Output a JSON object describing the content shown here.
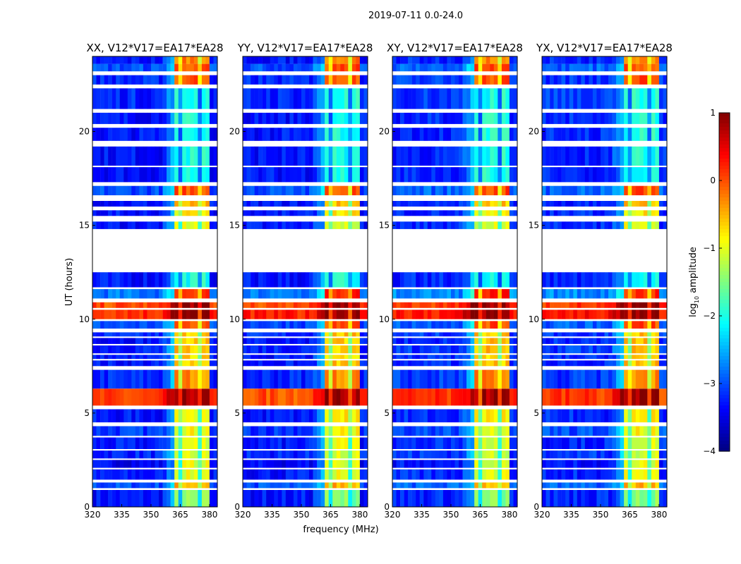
{
  "chart_data": {
    "type": "heatmap",
    "suptitle": "2019-07-11 0.0-24.0",
    "xlabel": "frequency (MHz)",
    "ylabel": "UT (hours)",
    "xlim": [
      320,
      384
    ],
    "ylim": [
      0,
      24
    ],
    "xticks": [
      "320",
      "335",
      "350",
      "365",
      "380"
    ],
    "yticks": [
      "0",
      "5",
      "10",
      "15",
      "20"
    ],
    "colorbar": {
      "label": "log10 amplitude",
      "label_main": "log",
      "label_sub": "10",
      "label_rest": " amplitude",
      "range": [
        -4,
        1
      ],
      "ticks": [
        "1",
        "0",
        "−1",
        "−2",
        "−3",
        "−4"
      ],
      "colormap": "jet"
    },
    "panels": [
      {
        "title": "XX, V12*V17=EA17*EA28"
      },
      {
        "title": "YY, V12*V17=EA17*EA28"
      },
      {
        "title": "XY, V12*V17=EA17*EA28"
      },
      {
        "title": "YX, V12*V17=EA17*EA28"
      }
    ],
    "band_mhz": [
      360.5,
      380
    ],
    "segments_note": "[start_hour, end_hour, background_log_amp, band_log_amp]; null = flagged/no data",
    "segments": [
      [
        0,
        0.9,
        -3.3,
        -1.5
      ],
      [
        0.9,
        1.0,
        null,
        null
      ],
      [
        1.0,
        1.3,
        -3.0,
        -0.5
      ],
      [
        1.3,
        1.45,
        null,
        null
      ],
      [
        1.45,
        2.0,
        -3.3,
        -1.0
      ],
      [
        2.0,
        2.08,
        null,
        null
      ],
      [
        2.08,
        2.5,
        -3.4,
        -1.0
      ],
      [
        2.5,
        2.58,
        null,
        null
      ],
      [
        2.58,
        3.0,
        -3.2,
        -1.1
      ],
      [
        3.0,
        3.08,
        null,
        null
      ],
      [
        3.08,
        3.7,
        -3.3,
        -1.0
      ],
      [
        3.7,
        3.78,
        null,
        null
      ],
      [
        3.78,
        4.3,
        -3.1,
        -0.9
      ],
      [
        4.3,
        4.5,
        null,
        null
      ],
      [
        4.5,
        5.2,
        -3.3,
        -0.8
      ],
      [
        5.2,
        5.4,
        null,
        null
      ],
      [
        5.4,
        6.3,
        0.0,
        0.8
      ],
      [
        6.3,
        7.3,
        -3.2,
        -0.3
      ],
      [
        7.3,
        7.5,
        null,
        null
      ],
      [
        7.5,
        7.8,
        -3.3,
        -0.6
      ],
      [
        7.8,
        7.88,
        null,
        null
      ],
      [
        7.88,
        8.1,
        -3.3,
        -0.7
      ],
      [
        8.1,
        8.18,
        null,
        null
      ],
      [
        8.18,
        8.6,
        -3.2,
        -0.6
      ],
      [
        8.6,
        8.68,
        null,
        null
      ],
      [
        8.68,
        9.0,
        -3.3,
        -0.6
      ],
      [
        9.0,
        9.08,
        null,
        null
      ],
      [
        9.08,
        9.3,
        -3.2,
        -0.6
      ],
      [
        9.3,
        9.5,
        null,
        null
      ],
      [
        9.5,
        9.9,
        -3.0,
        0.0
      ],
      [
        9.9,
        10.0,
        null,
        null
      ],
      [
        10.0,
        10.5,
        0.2,
        0.9
      ],
      [
        10.5,
        10.6,
        null,
        null
      ],
      [
        10.6,
        10.9,
        0.0,
        0.9
      ],
      [
        10.9,
        11.1,
        null,
        null
      ],
      [
        11.1,
        11.6,
        -2.8,
        0.2
      ],
      [
        11.6,
        11.7,
        null,
        null
      ],
      [
        11.7,
        12.5,
        -3.3,
        -2.0
      ],
      [
        12.5,
        14.8,
        null,
        null
      ],
      [
        14.8,
        15.2,
        -3.3,
        -1.0
      ],
      [
        15.2,
        15.5,
        null,
        null
      ],
      [
        15.5,
        15.8,
        -3.3,
        -0.8
      ],
      [
        15.8,
        16.0,
        null,
        null
      ],
      [
        16.0,
        16.3,
        -3.3,
        -0.6
      ],
      [
        16.3,
        16.6,
        null,
        null
      ],
      [
        16.6,
        17.1,
        -3.0,
        0.0
      ],
      [
        17.1,
        17.3,
        null,
        null
      ],
      [
        17.3,
        18.1,
        -3.3,
        -2.0
      ],
      [
        18.1,
        18.18,
        null,
        null
      ],
      [
        18.18,
        19.2,
        -3.3,
        -2.0
      ],
      [
        19.2,
        19.5,
        null,
        null
      ],
      [
        19.5,
        20.2,
        -3.3,
        -2.0
      ],
      [
        20.2,
        20.4,
        null,
        null
      ],
      [
        20.4,
        21.0,
        -3.3,
        -2.0
      ],
      [
        21.0,
        21.2,
        null,
        null
      ],
      [
        21.2,
        22.3,
        -3.2,
        -2.0
      ],
      [
        22.3,
        22.5,
        null,
        null
      ],
      [
        22.5,
        23.0,
        -3.2,
        0.0
      ],
      [
        23.0,
        23.2,
        null,
        null
      ],
      [
        23.2,
        23.6,
        -3.0,
        0.0
      ],
      [
        23.6,
        24.0,
        -3.3,
        -0.2
      ]
    ]
  }
}
